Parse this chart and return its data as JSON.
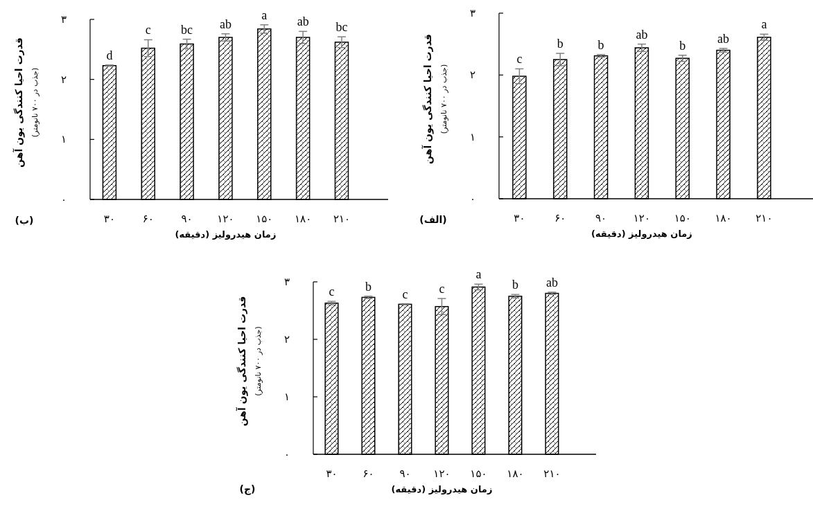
{
  "chart_data": [
    {
      "type": "bar",
      "title": "(الف)",
      "ylabel": "قدرت احیا کنندگی یون آهن\n(جذب در ۷۰۰ نانومتر)",
      "xlabel": "زمان هیدرولیز (دقیقه)",
      "categories": [
        "۳۰",
        "۶۰",
        "۹۰",
        "۱۲۰",
        "۱۵۰",
        "۱۸۰",
        "۲۱۰"
      ],
      "series": [
        {
          "color": "#ffffff",
          "values": [
            1.98,
            2.25,
            2.31,
            2.44,
            2.27,
            2.4,
            2.61
          ],
          "errors": [
            0.12,
            0.1,
            0.02,
            0.06,
            0.05,
            0.03,
            0.05
          ]
        }
      ],
      "ylim": [
        0,
        3
      ],
      "yticks": [
        {
          "value": 0,
          "label": "۰"
        },
        {
          "value": 1,
          "label": "۱"
        },
        {
          "value": 2,
          "label": "۲"
        },
        {
          "value": 3,
          "label": "۳"
        }
      ],
      "annotations": [
        {
          "text": "c",
          "x": "۳۰",
          "y": 2.1
        },
        {
          "text": "b",
          "x": "۶۰",
          "y": 2.35
        },
        {
          "text": "b",
          "x": "۹۰",
          "y": 2.33
        },
        {
          "text": "ab",
          "x": "۱۲۰",
          "y": 2.5
        },
        {
          "text": "b",
          "x": "۱۵۰",
          "y": 2.32
        },
        {
          "text": "ab",
          "x": "۱۸۰",
          "y": 2.43
        },
        {
          "text": "a",
          "x": "۲۱۰",
          "y": 2.66
        }
      ]
    },
    {
      "type": "bar",
      "title": "(ب)",
      "ylabel": "قدرت احیا کنندگی یون آهن\n(جذب در ۷۰۰ نانومتر)",
      "xlabel": "زمان هیدرولیز (دقیقه)",
      "categories": [
        "۳۰",
        "۶۰",
        "۹۰",
        "۱۲۰",
        "۱۵۰",
        "۱۸۰",
        "۲۱۰"
      ],
      "series": [
        {
          "color": "#ffffff",
          "values": [
            2.23,
            2.52,
            2.59,
            2.7,
            2.84,
            2.7,
            2.62
          ],
          "errors": [
            0.01,
            0.14,
            0.08,
            0.06,
            0.07,
            0.1,
            0.09
          ]
        }
      ],
      "ylim": [
        0,
        3
      ],
      "yticks": [
        {
          "value": 0,
          "label": "۰"
        },
        {
          "value": 1,
          "label": "۱"
        },
        {
          "value": 2,
          "label": "۲"
        },
        {
          "value": 3,
          "label": "۳"
        }
      ],
      "annotations": [
        {
          "text": "d",
          "x": "۳۰",
          "y": 2.24
        },
        {
          "text": "c",
          "x": "۶۰",
          "y": 2.66
        },
        {
          "text": "bc",
          "x": "۹۰",
          "y": 2.67
        },
        {
          "text": "ab",
          "x": "۱۲۰",
          "y": 2.76
        },
        {
          "text": "a",
          "x": "۱۵۰",
          "y": 2.91
        },
        {
          "text": "ab",
          "x": "۱۸۰",
          "y": 2.8
        },
        {
          "text": "bc",
          "x": "۲۱۰",
          "y": 2.71
        }
      ]
    },
    {
      "type": "bar",
      "title": "(ج)",
      "ylabel": "قدرت احیا کنندگی یون آهن\n(جذب در ۷۰۰ نانومتر)",
      "xlabel": "زمان هیدرولیز (دقیقه)",
      "categories": [
        "۳۰",
        "۶۰",
        "۹۰",
        "۱۲۰",
        "۱۵۰",
        "۱۸۰",
        "۲۱۰"
      ],
      "series": [
        {
          "color": "#ffffff",
          "values": [
            2.63,
            2.73,
            2.61,
            2.57,
            2.91,
            2.75,
            2.8
          ],
          "errors": [
            0.03,
            0.02,
            0.01,
            0.14,
            0.05,
            0.03,
            0.02
          ]
        }
      ],
      "ylim": [
        0,
        3
      ],
      "yticks": [
        {
          "value": 0,
          "label": "۰"
        },
        {
          "value": 1,
          "label": "۱"
        },
        {
          "value": 2,
          "label": "۲"
        },
        {
          "value": 3,
          "label": "۳"
        }
      ],
      "annotations": [
        {
          "text": "c",
          "x": "۳۰",
          "y": 2.66
        },
        {
          "text": "b",
          "x": "۶۰",
          "y": 2.75
        },
        {
          "text": "c",
          "x": "۹۰",
          "y": 2.62
        },
        {
          "text": "c",
          "x": "۱۲۰",
          "y": 2.71
        },
        {
          "text": "a",
          "x": "۱۵۰",
          "y": 2.96
        },
        {
          "text": "b",
          "x": "۱۸۰",
          "y": 2.78
        },
        {
          "text": "ab",
          "x": "۲۱۰",
          "y": 2.82
        }
      ]
    }
  ]
}
